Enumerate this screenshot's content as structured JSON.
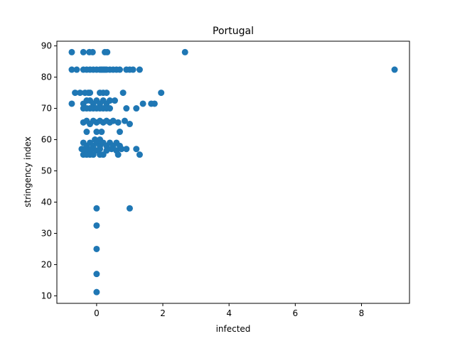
{
  "chart_data": {
    "type": "scatter",
    "title": "Portugal",
    "xlabel": "infected",
    "ylabel": "stringency index",
    "xlim": [
      -1.2,
      9.45
    ],
    "ylim": [
      7.6,
      91.5
    ],
    "xticks": [
      0,
      2,
      4,
      6,
      8
    ],
    "yticks": [
      10,
      20,
      30,
      40,
      50,
      60,
      70,
      80,
      90
    ],
    "grid": false,
    "color": "#1f77b4",
    "points": [
      [
        -0.75,
        88.0
      ],
      [
        -0.4,
        88.0
      ],
      [
        -0.22,
        88.0
      ],
      [
        -0.12,
        88.0
      ],
      [
        0.25,
        88.0
      ],
      [
        0.32,
        88.0
      ],
      [
        2.67,
        88.0
      ],
      [
        -0.75,
        82.4
      ],
      [
        -0.6,
        82.4
      ],
      [
        -0.4,
        82.4
      ],
      [
        -0.3,
        82.4
      ],
      [
        -0.2,
        82.4
      ],
      [
        -0.1,
        82.4
      ],
      [
        0.0,
        82.4
      ],
      [
        0.1,
        82.4
      ],
      [
        0.15,
        82.4
      ],
      [
        0.2,
        82.4
      ],
      [
        0.25,
        82.4
      ],
      [
        0.3,
        82.4
      ],
      [
        0.4,
        82.4
      ],
      [
        0.5,
        82.4
      ],
      [
        0.6,
        82.4
      ],
      [
        0.7,
        82.4
      ],
      [
        0.9,
        82.4
      ],
      [
        1.0,
        82.4
      ],
      [
        1.1,
        82.4
      ],
      [
        1.3,
        82.4
      ],
      [
        9.0,
        82.4
      ],
      [
        -0.65,
        75.0
      ],
      [
        -0.5,
        75.0
      ],
      [
        -0.35,
        75.0
      ],
      [
        -0.25,
        75.0
      ],
      [
        -0.2,
        75.0
      ],
      [
        0.1,
        75.0
      ],
      [
        0.2,
        75.0
      ],
      [
        0.3,
        75.0
      ],
      [
        0.8,
        75.0
      ],
      [
        1.95,
        75.0
      ],
      [
        -0.75,
        71.5
      ],
      [
        -0.4,
        71.5
      ],
      [
        -0.3,
        72.5
      ],
      [
        -0.2,
        72.5
      ],
      [
        -0.1,
        71.5
      ],
      [
        0.0,
        72.5
      ],
      [
        0.1,
        71.5
      ],
      [
        0.2,
        72.5
      ],
      [
        0.3,
        71.5
      ],
      [
        0.4,
        72.5
      ],
      [
        0.55,
        72.5
      ],
      [
        1.4,
        71.5
      ],
      [
        1.65,
        71.5
      ],
      [
        1.75,
        71.5
      ],
      [
        -0.4,
        70.0
      ],
      [
        -0.3,
        70.0
      ],
      [
        -0.2,
        70.0
      ],
      [
        -0.1,
        70.0
      ],
      [
        0.0,
        70.0
      ],
      [
        0.1,
        70.0
      ],
      [
        0.2,
        70.0
      ],
      [
        0.3,
        70.0
      ],
      [
        0.4,
        70.0
      ],
      [
        0.9,
        70.0
      ],
      [
        1.2,
        70.0
      ],
      [
        -0.4,
        65.5
      ],
      [
        -0.3,
        66.0
      ],
      [
        -0.2,
        65.0
      ],
      [
        -0.1,
        66.0
      ],
      [
        0.0,
        65.5
      ],
      [
        0.1,
        66.0
      ],
      [
        0.2,
        65.5
      ],
      [
        0.3,
        66.0
      ],
      [
        0.4,
        65.5
      ],
      [
        0.5,
        66.0
      ],
      [
        0.65,
        65.5
      ],
      [
        0.85,
        66.0
      ],
      [
        1.0,
        65.0
      ],
      [
        -0.3,
        62.5
      ],
      [
        0.0,
        62.5
      ],
      [
        0.15,
        62.5
      ],
      [
        0.7,
        62.5
      ],
      [
        -0.05,
        60.0
      ],
      [
        0.1,
        60.0
      ],
      [
        -0.4,
        59.0
      ],
      [
        -0.3,
        58.0
      ],
      [
        -0.2,
        59.0
      ],
      [
        -0.1,
        58.0
      ],
      [
        0.0,
        59.0
      ],
      [
        0.1,
        58.0
      ],
      [
        0.2,
        59.0
      ],
      [
        0.3,
        58.0
      ],
      [
        0.4,
        59.0
      ],
      [
        0.5,
        58.0
      ],
      [
        0.6,
        59.0
      ],
      [
        0.7,
        58.0
      ],
      [
        -0.45,
        57.0
      ],
      [
        -0.35,
        57.0
      ],
      [
        -0.25,
        56.5
      ],
      [
        -0.15,
        57.0
      ],
      [
        0.0,
        56.5
      ],
      [
        0.1,
        57.0
      ],
      [
        0.3,
        56.5
      ],
      [
        0.45,
        57.0
      ],
      [
        0.6,
        56.5
      ],
      [
        0.75,
        57.0
      ],
      [
        0.9,
        57.0
      ],
      [
        1.2,
        57.0
      ],
      [
        -0.4,
        55.2
      ],
      [
        -0.3,
        55.2
      ],
      [
        -0.2,
        55.2
      ],
      [
        -0.1,
        55.2
      ],
      [
        0.1,
        55.2
      ],
      [
        0.2,
        55.2
      ],
      [
        0.65,
        55.2
      ],
      [
        1.3,
        55.2
      ],
      [
        0.0,
        38.0
      ],
      [
        1.0,
        38.0
      ],
      [
        0.0,
        32.5
      ],
      [
        0.0,
        25.0
      ],
      [
        0.0,
        17.0
      ],
      [
        0.0,
        11.2
      ]
    ]
  }
}
